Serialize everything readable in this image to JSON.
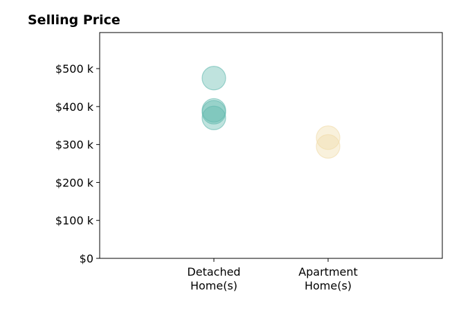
{
  "chart_data": {
    "type": "scatter",
    "title": "Selling Price",
    "xlabel": "",
    "ylabel": "",
    "categories": [
      {
        "line1": "Detached",
        "line2": "Home(s)"
      },
      {
        "line1": "Apartment",
        "line2": "Home(s)"
      }
    ],
    "yticks": [
      {
        "value": 0,
        "label": "$0"
      },
      {
        "value": 100000,
        "label": "$100 k"
      },
      {
        "value": 200000,
        "label": "$200 k"
      },
      {
        "value": 300000,
        "label": "$300 k"
      },
      {
        "value": 400000,
        "label": "$400 k"
      },
      {
        "value": 500000,
        "label": "$500 k"
      }
    ],
    "ylim": [
      0,
      595000
    ],
    "xlim": [
      -1,
      2
    ],
    "grid": false,
    "series": [
      {
        "category_index": 0,
        "color": "#5fb8ad",
        "values": [
          475000,
          390000,
          385000,
          370000
        ]
      },
      {
        "category_index": 1,
        "color": "#f0dba8",
        "values": [
          318000,
          295000
        ]
      }
    ]
  }
}
